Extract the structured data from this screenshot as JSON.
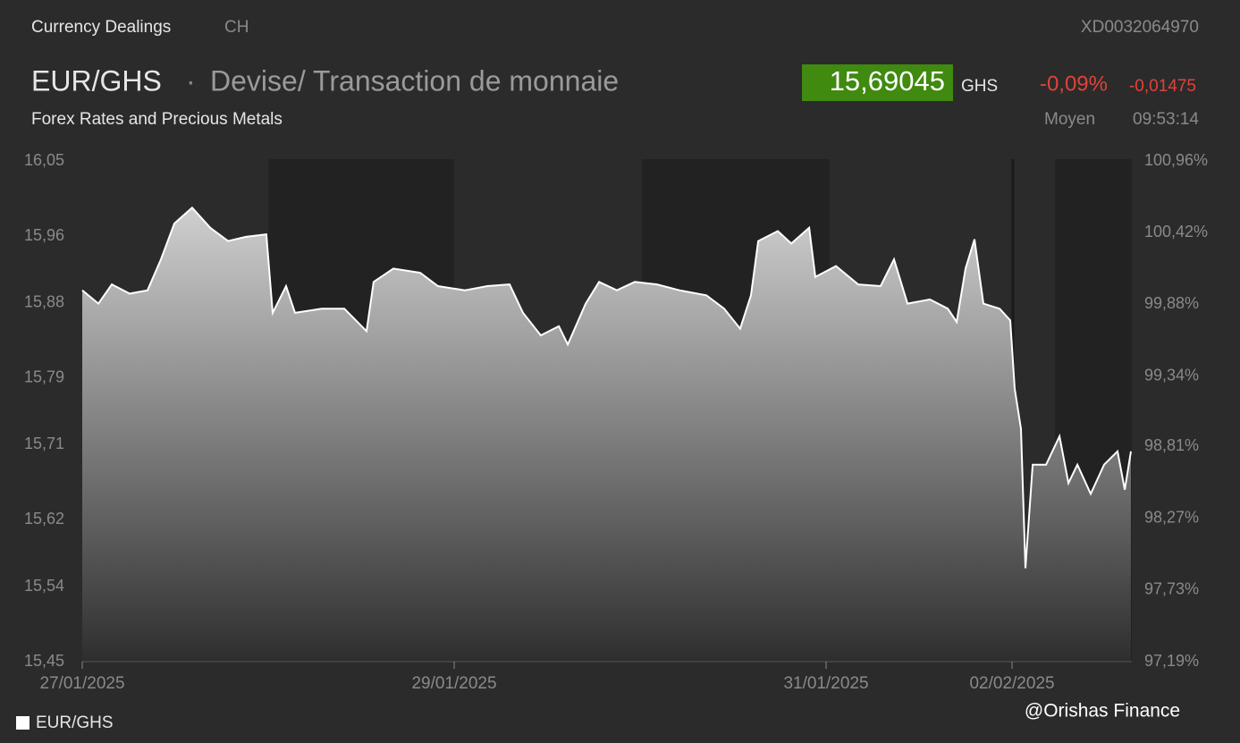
{
  "header": {
    "section": "Currency Dealings",
    "market": "CH",
    "isin": "XD0032064970",
    "symbol": "EUR/GHS",
    "separator": "·",
    "description": "Devise/ Transaction de monnaie",
    "subtitle": "Forex Rates and Precious Metals",
    "price": "15,69045",
    "currency": "GHS",
    "change_pct": "-0,09%",
    "change_abs": "-0,01475",
    "price_type": "Moyen",
    "time": "09:53:14"
  },
  "chart_data": {
    "type": "area",
    "watermark": "@Orishas Finance",
    "x": [
      0,
      0.087,
      0.159,
      0.255,
      0.351,
      0.423,
      0.495,
      0.591,
      0.688,
      0.784,
      0.88,
      0.99,
      1.024,
      1.096,
      1.144,
      1.288,
      1.409,
      1.529,
      1.567,
      1.673,
      1.817,
      1.913,
      2.058,
      2.178,
      2.298,
      2.37,
      2.466,
      2.563,
      2.611,
      2.707,
      2.779,
      2.875,
      2.971,
      3.091,
      3.212,
      3.356,
      3.452,
      3.538,
      3.596,
      3.635,
      3.74,
      3.813,
      3.909,
      3.942,
      4.053,
      4.173,
      4.293,
      4.365,
      4.438,
      4.558,
      4.654,
      4.702,
      4.75,
      4.798,
      4.846,
      4.933,
      4.99,
      5.014,
      5.048,
      5.072,
      5.111,
      5.183,
      5.255,
      5.303,
      5.351,
      5.423,
      5.495,
      5.567,
      5.606,
      5.639
    ],
    "series": [
      {
        "name": "EUR/GHS",
        "color": "#ffffff",
        "values": [
          15.895,
          15.879,
          15.902,
          15.891,
          15.895,
          15.932,
          15.975,
          15.994,
          15.97,
          15.954,
          15.959,
          15.962,
          15.868,
          15.9,
          15.868,
          15.873,
          15.873,
          15.846,
          15.905,
          15.921,
          15.916,
          15.9,
          15.895,
          15.9,
          15.902,
          15.868,
          15.841,
          15.852,
          15.83,
          15.879,
          15.905,
          15.895,
          15.905,
          15.902,
          15.895,
          15.889,
          15.873,
          15.849,
          15.889,
          15.954,
          15.966,
          15.951,
          15.97,
          15.911,
          15.924,
          15.902,
          15.9,
          15.932,
          15.879,
          15.884,
          15.873,
          15.857,
          15.921,
          15.956,
          15.879,
          15.873,
          15.859,
          15.777,
          15.729,
          15.562,
          15.686,
          15.686,
          15.72,
          15.664,
          15.686,
          15.651,
          15.686,
          15.702,
          15.656,
          15.702
        ]
      }
    ],
    "xlim": [
      0,
      5.644
    ],
    "xticks": [
      {
        "value": 0,
        "label": "27/01/2025"
      },
      {
        "value": 2,
        "label": "29/01/2025"
      },
      {
        "value": 4,
        "label": "31/01/2025"
      },
      {
        "value": 5,
        "label": "02/02/2025"
      }
    ],
    "ylim": [
      15.45,
      16.05
    ],
    "yticks": [
      {
        "value": 16.05,
        "label": "16,05"
      },
      {
        "value": 15.96,
        "label": "15,96"
      },
      {
        "value": 15.88,
        "label": "15,88"
      },
      {
        "value": 15.79,
        "label": "15,79"
      },
      {
        "value": 15.71,
        "label": "15,71"
      },
      {
        "value": 15.62,
        "label": "15,62"
      },
      {
        "value": 15.54,
        "label": "15,54"
      },
      {
        "value": 15.45,
        "label": "15,45"
      }
    ],
    "y2lim": [
      97.19,
      100.96
    ],
    "y2ticks": [
      {
        "value": 100.96,
        "label": "100,96%"
      },
      {
        "value": 100.42,
        "label": "100,42%"
      },
      {
        "value": 99.88,
        "label": "99,88%"
      },
      {
        "value": 99.34,
        "label": "99,34%"
      },
      {
        "value": 98.81,
        "label": "98,81%"
      },
      {
        "value": 98.27,
        "label": "98,27%"
      },
      {
        "value": 97.73,
        "label": "97,73%"
      },
      {
        "value": 97.19,
        "label": "97,19%"
      }
    ]
  }
}
